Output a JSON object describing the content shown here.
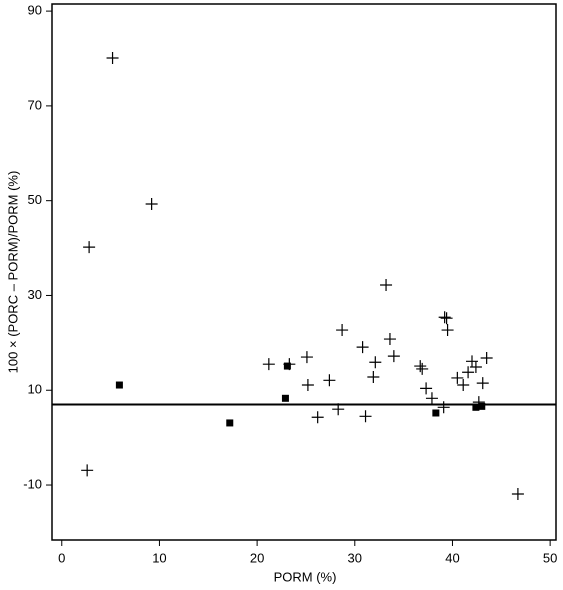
{
  "chart_data": {
    "type": "scatter",
    "x_label": "PORM (%)",
    "y_label": "100 × (PORC – PORM)/PORM (%)",
    "xlim": [
      -1,
      50.6
    ],
    "ylim": [
      -21.6,
      91.5
    ],
    "xticks": [
      0,
      10,
      20,
      30,
      40,
      50
    ],
    "yticks": [
      -10,
      10,
      30,
      50,
      70,
      90
    ],
    "reference_line": 7,
    "series": [
      {
        "marker": "cross",
        "color": "#000000",
        "x": [
          5.2,
          2.8,
          9.2,
          2.6,
          21.2,
          23.3,
          25.1,
          25.2,
          26.2,
          27.4,
          28.3,
          28.7,
          30.8,
          31.1,
          31.9,
          32.1,
          33.2,
          33.6,
          34.0,
          36.7,
          36.9,
          37.3,
          37.9,
          39.1,
          39.2,
          39.4,
          39.5,
          40.5,
          41.1,
          41.6,
          42.0,
          42.4,
          42.7,
          43.1,
          43.5,
          46.7
        ],
        "values": [
          80.1,
          40.2,
          49.3,
          -6.9,
          15.5,
          15.5,
          17.0,
          11.1,
          4.3,
          12.1,
          6.0,
          22.7,
          19.1,
          4.5,
          12.8,
          15.9,
          32.2,
          20.8,
          17.2,
          15.1,
          14.5,
          10.4,
          8.3,
          6.4,
          25.4,
          25.2,
          22.7,
          12.6,
          11.1,
          13.8,
          16.1,
          14.9,
          7.5,
          11.5,
          16.8,
          -11.9
        ]
      },
      {
        "marker": "square",
        "color": "#000000",
        "x": [
          5.9,
          17.2,
          23.1,
          22.9,
          38.3,
          42.4,
          43.0
        ],
        "values": [
          11.1,
          3.1,
          15.1,
          8.3,
          5.2,
          6.4,
          6.6
        ]
      }
    ]
  }
}
